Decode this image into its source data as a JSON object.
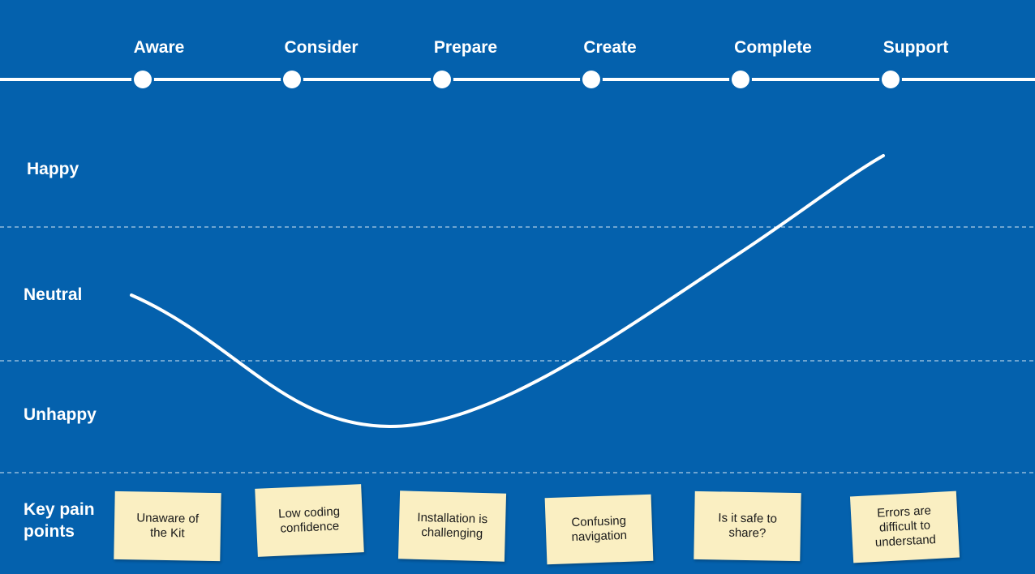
{
  "stages": [
    "Aware",
    "Consider",
    "Prepare",
    "Create",
    "Complete",
    "Support"
  ],
  "rows": {
    "happy": "Happy",
    "neutral": "Neutral",
    "unhappy": "Unhappy",
    "pain_points_line1": "Key pain",
    "pain_points_line2": "points"
  },
  "pain_points": [
    {
      "line1": "Unaware of",
      "line2": "the Kit"
    },
    {
      "line1": "Low coding",
      "line2": "confidence"
    },
    {
      "line1": "Installation is",
      "line2": "challenging"
    },
    {
      "line1": "Confusing",
      "line2": "navigation"
    },
    {
      "line1": "Is it safe to",
      "line2": "share?"
    },
    {
      "line1": "Errors are",
      "line2": "difficult to",
      "line3": "understand"
    }
  ],
  "colors": {
    "background": "#0461AD",
    "line": "#FFFFFF",
    "note": "#FAEFC2"
  }
}
